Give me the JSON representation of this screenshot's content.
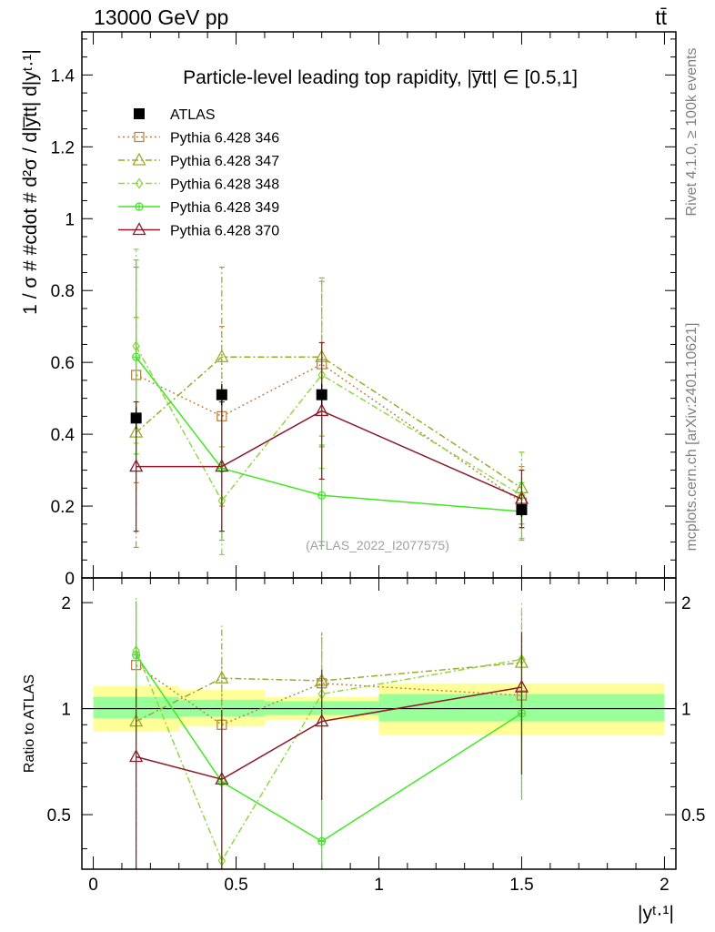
{
  "header": {
    "energy_label": "13000 GeV pp",
    "process_label": "tt̄"
  },
  "side_labels": {
    "rivet": "Rivet 4.1.0, ≥ 100k events",
    "mcplots": "mcplots.cern.ch [arXiv:2401.10621]"
  },
  "watermark": "(ATLAS_2022_I2077575)",
  "chart_data": [
    {
      "type": "scatter",
      "panel": "main",
      "title": "Particle-level leading top rapidity, |y̅tt| ∈ [0.5,1]",
      "ylabel": "1 / σ # #cdot # d²σ / d|y̅tt| d|yᵗ·¹|",
      "xlabel": "|yᵗ·¹|",
      "xlim": [
        -0.04,
        2.04
      ],
      "ylim": [
        0,
        1.52
      ],
      "yticks": [
        "0",
        "0.2",
        "0.4",
        "0.6",
        "0.8",
        "1",
        "1.2",
        "1.4"
      ],
      "series": [
        {
          "name": "ATLAS",
          "color": "#000000",
          "marker": "filled-square",
          "x": [
            0.15,
            0.45,
            0.8,
            1.5
          ],
          "xerr": [
            0.15,
            0.15,
            0.2,
            0.5
          ],
          "y": [
            0.445,
            0.51,
            0.51,
            0.19
          ],
          "yerr": [
            0.03,
            0.03,
            0.03,
            0.02
          ]
        },
        {
          "name": "Pythia 6.428 346",
          "color": "#b8864b",
          "marker": "open-square",
          "line": "dotted",
          "x": [
            0.15,
            0.45,
            0.8,
            1.5
          ],
          "y": [
            0.565,
            0.45,
            0.595,
            0.21
          ],
          "yerr": [
            0.3,
            0.25,
            0.23,
            0.1
          ]
        },
        {
          "name": "Pythia 6.428 347",
          "color": "#9aaa2a",
          "marker": "open-triangle",
          "line": "dashdot",
          "x": [
            0.15,
            0.45,
            0.8,
            1.5
          ],
          "y": [
            0.405,
            0.615,
            0.615,
            0.25
          ],
          "yerr": [
            0.32,
            0.25,
            0.22,
            0.1
          ]
        },
        {
          "name": "Pythia 6.428 348",
          "color": "#90d840",
          "marker": "open-diamond",
          "line": "dashdot",
          "x": [
            0.15,
            0.45,
            0.8,
            1.5
          ],
          "y": [
            0.645,
            0.215,
            0.565,
            0.23
          ],
          "yerr": [
            0.27,
            0.15,
            0.26,
            0.12
          ]
        },
        {
          "name": "Pythia 6.428 349",
          "color": "#40e820",
          "marker": "open-cross-circle",
          "line": "solid",
          "x": [
            0.15,
            0.45,
            0.8,
            1.5
          ],
          "y": [
            0.615,
            0.305,
            0.23,
            0.185
          ],
          "yerr": [
            0.27,
            0.2,
            0.14,
            0.08
          ]
        },
        {
          "name": "Pythia 6.428 370",
          "color": "#8b1a2a",
          "marker": "open-triangle",
          "line": "solid",
          "x": [
            0.15,
            0.45,
            0.8,
            1.5
          ],
          "y": [
            0.31,
            0.31,
            0.465,
            0.22
          ],
          "yerr": [
            0.18,
            0.18,
            0.19,
            0.08
          ]
        }
      ]
    },
    {
      "type": "scatter",
      "panel": "ratio",
      "ylabel": "Ratio to ATLAS",
      "xlim": [
        -0.04,
        2.04
      ],
      "ylim": [
        0.35,
        2.35
      ],
      "scale": "log",
      "xticks": [
        "0",
        "0.5",
        "1",
        "1.5",
        "2"
      ],
      "yticks": [
        "0.5",
        "1",
        "2"
      ],
      "bands": {
        "x_edges": [
          0,
          0.3,
          0.6,
          1.0,
          2.0
        ],
        "inner": [
          [
            0.94,
            1.08
          ],
          [
            0.95,
            1.06
          ],
          [
            0.96,
            1.05
          ],
          [
            0.92,
            1.1
          ]
        ],
        "outer": [
          [
            0.86,
            1.16
          ],
          [
            0.89,
            1.13
          ],
          [
            0.93,
            1.08
          ],
          [
            0.84,
            1.18
          ]
        ]
      },
      "series": [
        {
          "name": "Pythia 6.428 346",
          "x": [
            0.15,
            0.45,
            0.8,
            1.5
          ],
          "y": [
            1.33,
            0.9,
            1.18,
            1.09
          ],
          "yerr": [
            0.65,
            0.47,
            0.46,
            0.53
          ]
        },
        {
          "name": "Pythia 6.428 347",
          "x": [
            0.15,
            0.45,
            0.8,
            1.5
          ],
          "y": [
            0.92,
            1.22,
            1.2,
            1.35
          ],
          "yerr": [
            0.72,
            0.5,
            0.45,
            0.53
          ]
        },
        {
          "name": "Pythia 6.428 348",
          "x": [
            0.15,
            0.45,
            0.8,
            1.5
          ],
          "y": [
            1.46,
            0.37,
            1.1,
            1.38
          ],
          "yerr": [
            0.6,
            0.28,
            0.5,
            0.62
          ]
        },
        {
          "name": "Pythia 6.428 349",
          "x": [
            0.15,
            0.45,
            0.8,
            1.5
          ],
          "y": [
            1.42,
            0.62,
            0.42,
            0.97
          ],
          "yerr": [
            0.6,
            0.38,
            0.28,
            0.42
          ]
        },
        {
          "name": "Pythia 6.428 370",
          "x": [
            0.15,
            0.45,
            0.8,
            1.5
          ],
          "y": [
            0.73,
            0.63,
            0.92,
            1.15
          ],
          "yerr": [
            0.41,
            0.36,
            0.37,
            0.5
          ]
        }
      ]
    }
  ]
}
